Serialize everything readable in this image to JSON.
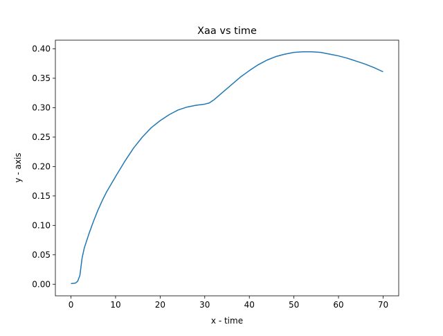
{
  "chart_data": {
    "type": "line",
    "title": "Xaa vs time",
    "xlabel": "x - time",
    "ylabel": "y - axis",
    "xlim": [
      -3.5,
      73.5
    ],
    "ylim": [
      -0.0197,
      0.4147
    ],
    "xticks": [
      0,
      10,
      20,
      30,
      40,
      50,
      60,
      70
    ],
    "xtick_labels": [
      "0",
      "10",
      "20",
      "30",
      "40",
      "50",
      "60",
      "70"
    ],
    "yticks": [
      0.0,
      0.05,
      0.1,
      0.15,
      0.2,
      0.25,
      0.3,
      0.35,
      0.4
    ],
    "ytick_labels": [
      "0.00",
      "0.05",
      "0.10",
      "0.15",
      "0.20",
      "0.25",
      "0.30",
      "0.35",
      "0.40"
    ],
    "grid": false,
    "legend": "none",
    "series": [
      {
        "color": "#1f77b4",
        "x": [
          0,
          1,
          1.5,
          2,
          2.5,
          3,
          4,
          5,
          6,
          7,
          8,
          10,
          12,
          14,
          16,
          18,
          20,
          22,
          24,
          26,
          28,
          30,
          31,
          32,
          34,
          36,
          38,
          40,
          42,
          44,
          46,
          48,
          50,
          52,
          54,
          56,
          58,
          60,
          62,
          64,
          66,
          68,
          70
        ],
        "y": [
          0.001,
          0.002,
          0.005,
          0.015,
          0.045,
          0.062,
          0.085,
          0.106,
          0.125,
          0.142,
          0.157,
          0.183,
          0.208,
          0.231,
          0.25,
          0.266,
          0.278,
          0.288,
          0.296,
          0.301,
          0.304,
          0.306,
          0.308,
          0.313,
          0.326,
          0.339,
          0.352,
          0.363,
          0.373,
          0.381,
          0.387,
          0.391,
          0.394,
          0.395,
          0.395,
          0.394,
          0.391,
          0.388,
          0.384,
          0.379,
          0.374,
          0.368,
          0.361
        ]
      }
    ]
  }
}
